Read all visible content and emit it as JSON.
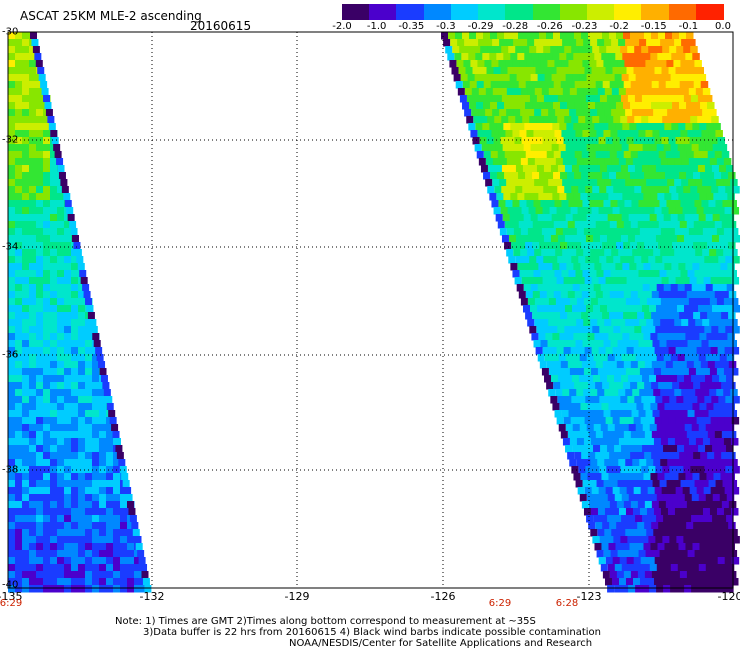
{
  "header": {
    "title": "ASCAT 25KM MLE-2 ascending",
    "date": "20160615"
  },
  "colorbar": {
    "colors": [
      "#3a0066",
      "#4b00cc",
      "#1a3cff",
      "#0088ff",
      "#00ccff",
      "#00e6cc",
      "#00e68a",
      "#33e633",
      "#88e600",
      "#ccee00",
      "#ffee00",
      "#ffb000",
      "#ff6a00",
      "#ff2200"
    ],
    "labels": [
      "-2.0",
      "-1.0",
      "-0.35",
      "-0.3",
      "-0.29",
      "-0.28",
      "-0.26",
      "-0.23",
      "-0.2",
      "-0.15",
      "-0.1",
      "0.0"
    ]
  },
  "axes": {
    "lat_labels": [
      "-30",
      "-32",
      "-34",
      "-36",
      "-38",
      "-40"
    ],
    "lon_labels": [
      "-135",
      "-132",
      "-129",
      "-126",
      "-123",
      "-120"
    ],
    "time_labels": [
      "6:29",
      "6:29",
      "6:28"
    ]
  },
  "notes": {
    "line1": "Note: 1) Times are GMT 2)Times along bottom correspond to measurement at ~35S",
    "line2": "3)Data buffer is 22 hrs from 20160615 4) Black wind barbs indicate possible contamination",
    "line3": "NOAA/NESDIS/Center for Satellite Applications and Research"
  }
}
